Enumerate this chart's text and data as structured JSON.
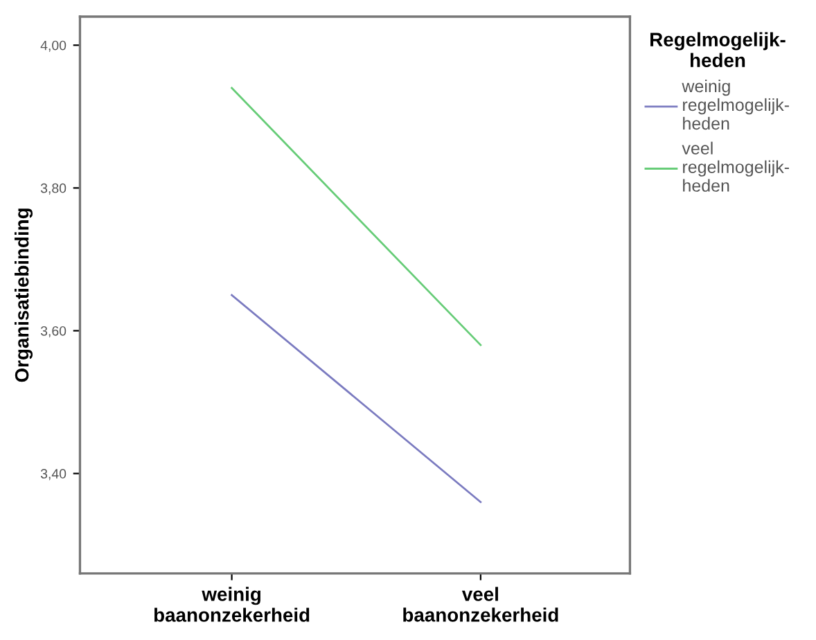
{
  "chart_data": {
    "type": "line",
    "ylabel": "Organisatiebinding",
    "legend_title": "Regelmogelijk-\nheden",
    "legend": "right",
    "grid": false,
    "marker": "none",
    "line_style": "solid",
    "categories": [
      "weinig\nbaanonzekerheid",
      "veel\nbaanonzekerheid"
    ],
    "ylim": [
      3.26,
      4.04
    ],
    "yticks": [
      {
        "value": 3.4,
        "label": "3,40"
      },
      {
        "value": 3.6,
        "label": "3,60"
      },
      {
        "value": 3.8,
        "label": "3,80"
      },
      {
        "value": 4.0,
        "label": "4,00"
      }
    ],
    "series": [
      {
        "name": "weinig\nregelmogelijk-\nheden",
        "color": "#7b7bc0",
        "values": [
          3.65,
          3.36
        ]
      },
      {
        "name": "veel\nregelmogelijk-\nheden",
        "color": "#66cc77",
        "values": [
          3.94,
          3.58
        ]
      }
    ]
  }
}
